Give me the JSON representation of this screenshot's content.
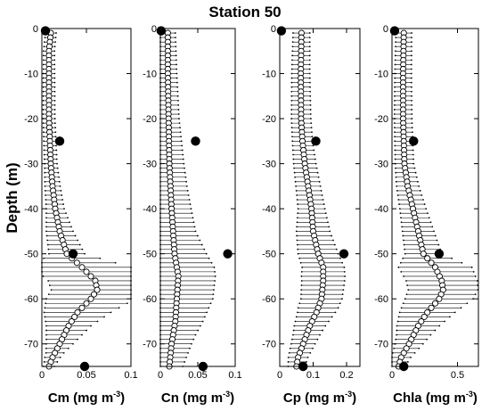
{
  "chart_data": {
    "type": "scatter",
    "title": "Station 50",
    "ylabel": "Depth (m)",
    "ylim": [
      -75,
      0
    ],
    "yticks": [
      0,
      -10,
      -20,
      -30,
      -40,
      -50,
      -60,
      -70
    ],
    "panels": [
      {
        "xlabel": "Cm (mg m",
        "xlabel_sup": "-3",
        "xlabel_end": ")",
        "xlim": [
          0,
          0.1
        ],
        "xticks": [
          0,
          0.05,
          0.1
        ],
        "xtick_labels": [
          "0",
          "0.05",
          "0.1"
        ],
        "profile": [
          [
            -1,
            0.01
          ],
          [
            -5,
            0.008
          ],
          [
            -10,
            0.008
          ],
          [
            -15,
            0.008
          ],
          [
            -20,
            0.008
          ],
          [
            -25,
            0.009
          ],
          [
            -30,
            0.01
          ],
          [
            -35,
            0.012
          ],
          [
            -40,
            0.015
          ],
          [
            -45,
            0.02
          ],
          [
            -50,
            0.028
          ],
          [
            -53,
            0.045
          ],
          [
            -56,
            0.06
          ],
          [
            -58,
            0.062
          ],
          [
            -60,
            0.055
          ],
          [
            -63,
            0.04
          ],
          [
            -66,
            0.03
          ],
          [
            -70,
            0.02
          ],
          [
            -73,
            0.012
          ],
          [
            -75,
            0.008
          ]
        ],
        "bar_halfwidth": [
          [
            -1,
            0.006
          ],
          [
            -30,
            0.007
          ],
          [
            -40,
            0.01
          ],
          [
            -50,
            0.02
          ],
          [
            -53,
            0.055
          ],
          [
            -60,
            0.05
          ],
          [
            -66,
            0.025
          ],
          [
            -72,
            0.01
          ],
          [
            -75,
            0.006
          ]
        ],
        "observed": [
          {
            "depth": -0.5,
            "value": 0.004
          },
          {
            "depth": -25,
            "value": 0.02
          },
          {
            "depth": -50,
            "value": 0.035
          },
          {
            "depth": -75,
            "value": 0.048
          }
        ]
      },
      {
        "xlabel": "Cn (mg m",
        "xlabel_sup": "-3",
        "xlabel_end": ")",
        "xlim": [
          0,
          0.1
        ],
        "xticks": [
          0,
          0.05,
          0.1
        ],
        "xtick_labels": [
          "0",
          "0.05",
          "0.1"
        ],
        "profile": [
          [
            -1,
            0.01
          ],
          [
            -10,
            0.01
          ],
          [
            -20,
            0.011
          ],
          [
            -30,
            0.012
          ],
          [
            -40,
            0.015
          ],
          [
            -50,
            0.019
          ],
          [
            -55,
            0.024
          ],
          [
            -60,
            0.022
          ],
          [
            -65,
            0.02
          ],
          [
            -70,
            0.015
          ],
          [
            -75,
            0.012
          ]
        ],
        "bar_halfwidth": [
          [
            -1,
            0.01
          ],
          [
            -20,
            0.014
          ],
          [
            -35,
            0.022
          ],
          [
            -45,
            0.03
          ],
          [
            -53,
            0.05
          ],
          [
            -60,
            0.048
          ],
          [
            -68,
            0.03
          ],
          [
            -75,
            0.018
          ]
        ],
        "observed": [
          {
            "depth": -0.5,
            "value": 0.001
          },
          {
            "depth": -25,
            "value": 0.047
          },
          {
            "depth": -50,
            "value": 0.09
          },
          {
            "depth": -75,
            "value": 0.057
          }
        ]
      },
      {
        "xlabel": "Cp (mg m",
        "xlabel_sup": "-3",
        "xlabel_end": ")",
        "xlim": [
          0,
          0.24
        ],
        "xticks": [
          0,
          0.1,
          0.2
        ],
        "xtick_labels": [
          "0",
          "0.1",
          "0.2"
        ],
        "profile": [
          [
            -1,
            0.065
          ],
          [
            -10,
            0.063
          ],
          [
            -20,
            0.064
          ],
          [
            -25,
            0.068
          ],
          [
            -30,
            0.075
          ],
          [
            -35,
            0.085
          ],
          [
            -40,
            0.095
          ],
          [
            -45,
            0.1
          ],
          [
            -50,
            0.115
          ],
          [
            -53,
            0.13
          ],
          [
            -56,
            0.13
          ],
          [
            -60,
            0.125
          ],
          [
            -63,
            0.11
          ],
          [
            -66,
            0.09
          ],
          [
            -70,
            0.07
          ],
          [
            -73,
            0.055
          ],
          [
            -75,
            0.05
          ]
        ],
        "bar_halfwidth": [
          [
            -1,
            0.025
          ],
          [
            -25,
            0.03
          ],
          [
            -40,
            0.04
          ],
          [
            -50,
            0.06
          ],
          [
            -55,
            0.065
          ],
          [
            -62,
            0.06
          ],
          [
            -68,
            0.04
          ],
          [
            -75,
            0.025
          ]
        ],
        "observed": [
          {
            "depth": -0.5,
            "value": 0.005
          },
          {
            "depth": -25,
            "value": 0.108
          },
          {
            "depth": -50,
            "value": 0.192
          },
          {
            "depth": -75,
            "value": 0.07
          }
        ]
      },
      {
        "xlabel": "Chla (mg m",
        "xlabel_sup": "-3",
        "xlabel_end": ")",
        "xlim": [
          0,
          0.66
        ],
        "xticks": [
          0,
          0.5
        ],
        "xtick_labels": [
          "0",
          "0.5"
        ],
        "profile": [
          [
            -1,
            0.09
          ],
          [
            -10,
            0.085
          ],
          [
            -20,
            0.085
          ],
          [
            -30,
            0.095
          ],
          [
            -35,
            0.12
          ],
          [
            -40,
            0.16
          ],
          [
            -45,
            0.2
          ],
          [
            -50,
            0.24
          ],
          [
            -53,
            0.33
          ],
          [
            -56,
            0.38
          ],
          [
            -58,
            0.39
          ],
          [
            -60,
            0.36
          ],
          [
            -63,
            0.27
          ],
          [
            -66,
            0.2
          ],
          [
            -70,
            0.13
          ],
          [
            -73,
            0.07
          ],
          [
            -75,
            0.05
          ]
        ],
        "bar_halfwidth": [
          [
            -1,
            0.06
          ],
          [
            -30,
            0.07
          ],
          [
            -40,
            0.1
          ],
          [
            -50,
            0.14
          ],
          [
            -53,
            0.28
          ],
          [
            -60,
            0.26
          ],
          [
            -68,
            0.13
          ],
          [
            -75,
            0.05
          ]
        ],
        "observed": [
          {
            "depth": -0.5,
            "value": 0.02
          },
          {
            "depth": -25,
            "value": 0.165
          },
          {
            "depth": -50,
            "value": 0.36
          },
          {
            "depth": -75,
            "value": 0.09
          }
        ]
      }
    ]
  }
}
